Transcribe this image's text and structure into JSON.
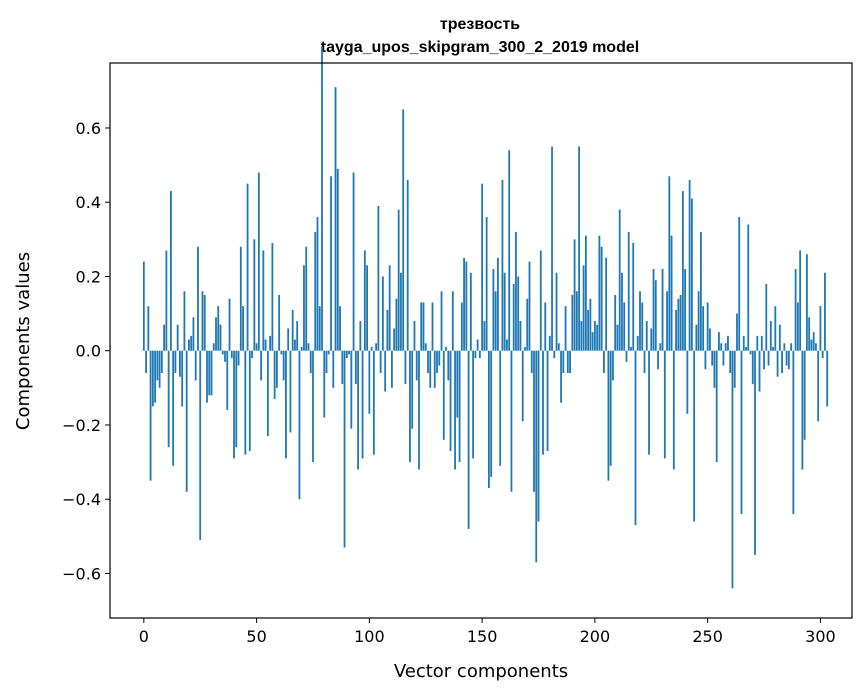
{
  "chart_data": {
    "type": "bar",
    "title": "трезвость",
    "subtitle": "tayga_upos_skipgram_300_2_2019 model",
    "xlabel": "Vector components",
    "ylabel": "Components values",
    "xlim": [
      -15,
      314
    ],
    "ylim": [
      -0.72,
      0.775
    ],
    "xticks": [
      0,
      50,
      100,
      150,
      200,
      250,
      300
    ],
    "xtick_labels": [
      "0",
      "50",
      "100",
      "150",
      "200",
      "250",
      "300"
    ],
    "yticks": [
      -0.6,
      -0.4,
      -0.2,
      0.0,
      0.2,
      0.4,
      0.6
    ],
    "ytick_labels": [
      "−0.6",
      "−0.4",
      "−0.2",
      "0.0",
      "0.2",
      "0.4",
      "0.6"
    ],
    "bar_color": "#1f77b4",
    "grid": false,
    "x_start": 0,
    "values": [
      0.24,
      -0.06,
      0.12,
      -0.35,
      -0.15,
      -0.14,
      -0.08,
      -0.1,
      -0.06,
      0.07,
      0.27,
      -0.26,
      0.43,
      -0.31,
      -0.06,
      0.07,
      -0.07,
      -0.15,
      0.16,
      -0.38,
      0.03,
      0.04,
      0.09,
      -0.08,
      0.28,
      -0.51,
      0.16,
      0.15,
      -0.14,
      -0.12,
      -0.12,
      0.02,
      0.09,
      0.12,
      0.07,
      -0.01,
      -0.03,
      -0.16,
      0.14,
      -0.02,
      -0.29,
      -0.26,
      -0.04,
      0.28,
      0.12,
      -0.28,
      0.45,
      -0.27,
      -0.02,
      0.3,
      0.02,
      0.48,
      -0.08,
      0.27,
      0.03,
      -0.23,
      0.04,
      0.29,
      -0.13,
      -0.1,
      0.15,
      -0.01,
      -0.08,
      -0.29,
      0.06,
      -0.22,
      0.11,
      0.03,
      0.08,
      -0.4,
      0.01,
      0.23,
      0.28,
      0.02,
      -0.06,
      -0.3,
      0.32,
      0.36,
      0.12,
      0.82,
      -0.18,
      -0.06,
      -0.01,
      0.47,
      -0.1,
      0.71,
      0.49,
      0.12,
      -0.09,
      -0.53,
      -0.02,
      -0.01,
      -0.21,
      0.48,
      -0.09,
      -0.32,
      0.08,
      -0.29,
      0.27,
      0.23,
      -0.17,
      0.01,
      -0.28,
      0.02,
      0.39,
      -0.06,
      0.2,
      -0.11,
      0.11,
      0.23,
      -0.1,
      0.06,
      0.14,
      0.38,
      0.21,
      0.65,
      -0.09,
      0.46,
      -0.3,
      -0.21,
      0.08,
      -0.08,
      -0.32,
      0.13,
      0.13,
      0.02,
      -0.06,
      -0.1,
      0.13,
      -0.1,
      -0.06,
      -0.04,
      0.16,
      -0.24,
      0.01,
      -0.08,
      -0.27,
      0.16,
      -0.32,
      -0.18,
      -0.3,
      0.13,
      0.25,
      0.24,
      -0.48,
      0.21,
      -0.29,
      -0.02,
      0.03,
      -0.02,
      0.45,
      0.08,
      0.36,
      -0.37,
      -0.34,
      0.22,
      0.16,
      0.25,
      -0.31,
      0.46,
      0.21,
      0.03,
      0.54,
      -0.38,
      0.18,
      0.32,
      0.2,
      0.08,
      -0.19,
      0.01,
      0.14,
      0.24,
      -0.06,
      -0.38,
      -0.57,
      -0.46,
      0.27,
      -0.28,
      0.13,
      -0.27,
      0.04,
      0.55,
      -0.02,
      0.21,
      0.02,
      -0.14,
      -0.06,
      0.12,
      -0.06,
      -0.06,
      0.15,
      0.3,
      0.16,
      0.55,
      0.08,
      0.23,
      0.31,
      0.11,
      0.14,
      0.05,
      0.08,
      0.07,
      0.31,
      0.28,
      -0.06,
      0.25,
      -0.35,
      -0.31,
      -0.08,
      0.15,
      0.07,
      0.38,
      0.21,
      0.13,
      -0.03,
      0.32,
      0.01,
      0.29,
      -0.47,
      0.04,
      0.16,
      0.13,
      -0.06,
      0.08,
      -0.28,
      0.06,
      0.22,
      0.19,
      -0.05,
      0.02,
      0.22,
      -0.29,
      0.16,
      0.47,
      0.31,
      -0.32,
      0.11,
      0.14,
      0.15,
      0.43,
      0.22,
      -0.17,
      0.46,
      0.41,
      -0.46,
      0.07,
      0.16,
      0.32,
      0.12,
      -0.05,
      0.13,
      0.06,
      -0.04,
      -0.1,
      -0.3,
      0.05,
      0.02,
      -0.04,
      0.02,
      0.04,
      -0.06,
      -0.64,
      -0.1,
      0.1,
      0.36,
      -0.44,
      0.04,
      0.01,
      0.34,
      -0.01,
      -0.09,
      -0.55,
      0.04,
      -0.11,
      0.04,
      -0.05,
      0.18,
      -0.04,
      0.08,
      0.01,
      0.12,
      -0.07,
      0.07,
      -0.06,
      0.02,
      -0.04,
      -0.05,
      0.02,
      -0.44,
      0.22,
      0.13,
      0.27,
      -0.32,
      -0.24,
      0.26,
      0.09,
      0.03,
      0.05,
      0.02,
      -0.19,
      0.12,
      -0.02,
      0.21,
      -0.15
    ]
  }
}
